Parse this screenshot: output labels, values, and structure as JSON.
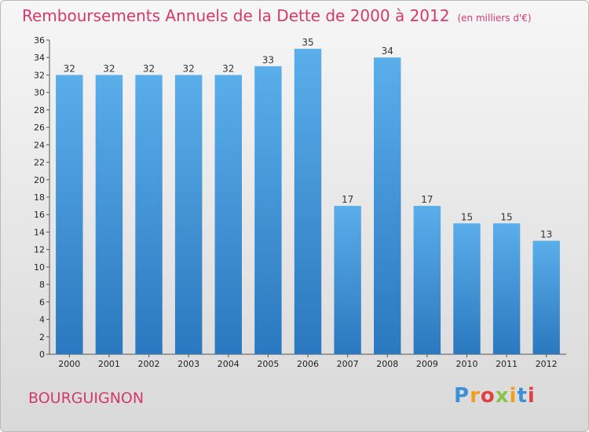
{
  "chart_data": {
    "type": "bar",
    "title": "Remboursements Annuels de la Dette de 2000 à 2012",
    "subtitle": "(en milliers d'€)",
    "categories": [
      "2000",
      "2001",
      "2002",
      "2003",
      "2004",
      "2005",
      "2006",
      "2007",
      "2008",
      "2009",
      "2010",
      "2011",
      "2012"
    ],
    "values": [
      32,
      32,
      32,
      32,
      32,
      33,
      35,
      17,
      34,
      17,
      15,
      15,
      13
    ],
    "ylim": [
      0,
      36
    ],
    "yticks": [
      0,
      2,
      4,
      6,
      8,
      10,
      12,
      14,
      16,
      18,
      20,
      22,
      24,
      26,
      28,
      30,
      32,
      34,
      36
    ],
    "grid": false,
    "bar_color": "#3d8fd6",
    "title_color": "#d33a6a"
  },
  "commune": "BOURGUIGNON",
  "logo": {
    "letters": [
      "P",
      "r",
      "o",
      "x",
      "i",
      "t",
      "i"
    ],
    "colors": [
      "#3d8fd6",
      "#f0a020",
      "#e04040",
      "#8bc34a",
      "#f0a020",
      "#3d8fd6",
      "#e04040"
    ]
  }
}
